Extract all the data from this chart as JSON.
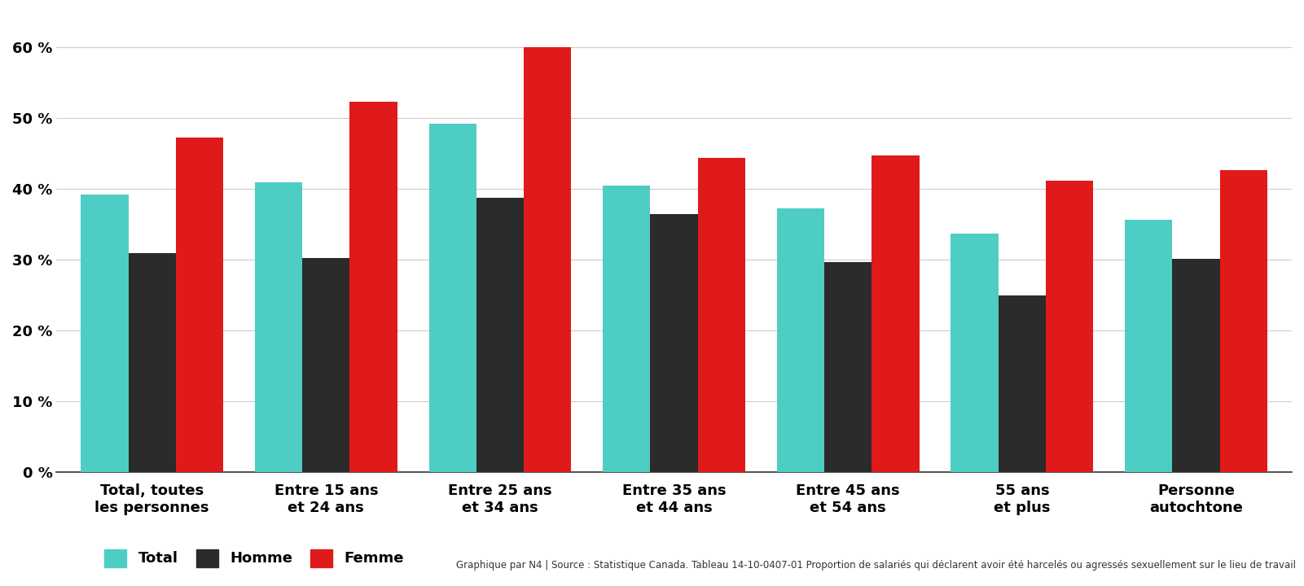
{
  "categories": [
    "Total, toutes\nles personnes",
    "Entre 15 ans\net 24 ans",
    "Entre 25 ans\net 34 ans",
    "Entre 35 ans\net 44 ans",
    "Entre 45 ans\net 54 ans",
    "55 ans\net plus",
    "Personne\nautochtone"
  ],
  "series": {
    "Total": [
      39.2,
      41.0,
      49.3,
      40.5,
      37.3,
      33.7,
      35.7
    ],
    "Homme": [
      31.0,
      30.3,
      38.8,
      36.5,
      29.7,
      25.0,
      30.2
    ],
    "Femme": [
      47.3,
      52.3,
      60.0,
      44.4,
      44.8,
      41.2,
      42.7
    ]
  },
  "colors": {
    "Total": "#4ECDC4",
    "Homme": "#2B2B2B",
    "Femme": "#E01A1A"
  },
  "ylim": [
    0,
    65
  ],
  "yticks": [
    0,
    10,
    20,
    30,
    40,
    50,
    60
  ],
  "ytick_labels": [
    "0 %",
    "10 %",
    "20 %",
    "30 %",
    "40 %",
    "50 %",
    "60 %"
  ],
  "legend_labels": [
    "Total",
    "Homme",
    "Femme"
  ],
  "source_text": "Graphique par N4 | Source : Statistique Canada. Tableau 14-10-0407-01 Proportion de salariés qui déclarent avoir été harcelés ou agressés sexuellement sur le lieu de travail",
  "bar_width": 0.3,
  "background_color": "#FFFFFF",
  "grid_color": "#CCCCCC",
  "tick_fontsize": 13,
  "legend_fontsize": 13,
  "source_fontsize": 8.5
}
